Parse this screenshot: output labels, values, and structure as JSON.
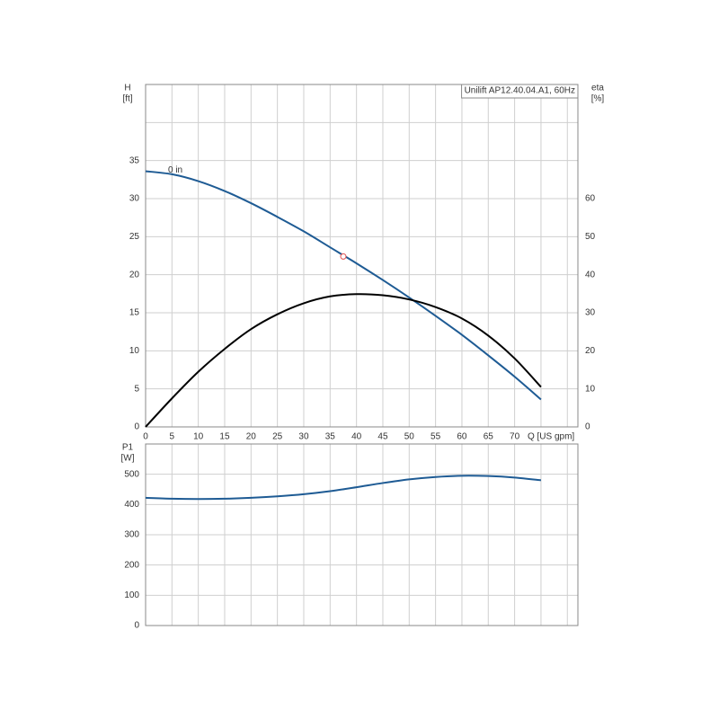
{
  "chart_data": [
    {
      "type": "line",
      "title": "Unilift AP12.40.04.A1, 60Hz",
      "ylabel": "H",
      "yunit": "[ft]",
      "y2label": "eta",
      "y2unit": "[%]",
      "xlabel": "Q [US gpm]",
      "curve_label": "0 in",
      "x": [
        0,
        5,
        10,
        15,
        20,
        25,
        30,
        35,
        40,
        45,
        50,
        55,
        60,
        65,
        70,
        75
      ],
      "series": [
        {
          "axis": "y",
          "color": "#1e5b94",
          "values": [
            33.6,
            33.2,
            32.3,
            31.0,
            29.4,
            27.6,
            25.7,
            23.6,
            21.5,
            19.3,
            17.0,
            14.6,
            12.1,
            9.4,
            6.6,
            3.6
          ]
        },
        {
          "axis": "y2",
          "color": "#000000",
          "values": [
            0,
            7.5,
            14.5,
            20.5,
            25.7,
            29.6,
            32.5,
            34.3,
            34.9,
            34.6,
            33.5,
            31.5,
            28.5,
            24,
            18,
            10.5
          ]
        }
      ],
      "points": [
        {
          "x": 37.5,
          "y": 22.4,
          "color": "#e05050"
        }
      ],
      "xlim": [
        0,
        82
      ],
      "xticks": [
        0,
        5,
        10,
        15,
        20,
        25,
        30,
        35,
        40,
        45,
        50,
        55,
        60,
        65,
        70,
        {
          "value": 75,
          "label": null
        },
        {
          "value": 80,
          "label": null
        }
      ],
      "ylim": [
        0,
        45
      ],
      "yticks": [
        0,
        5,
        10,
        15,
        20,
        25,
        30,
        35,
        {
          "value": 40,
          "label": null
        },
        {
          "value": 45,
          "label": null
        }
      ],
      "y2lim": [
        0,
        90
      ],
      "y2ticks": [
        0,
        10,
        20,
        30,
        40,
        50,
        60
      ],
      "grid": true,
      "show_xtick_labels": true
    },
    {
      "type": "line",
      "ylabel": "P1",
      "yunit": "[W]",
      "x": [
        0,
        5,
        10,
        15,
        20,
        25,
        30,
        35,
        40,
        45,
        50,
        55,
        60,
        65,
        70,
        75
      ],
      "series": [
        {
          "axis": "y",
          "color": "#1e5b94",
          "values": [
            422,
            419,
            418,
            419,
            422,
            427,
            434,
            444,
            457,
            471,
            483,
            491,
            495,
            494,
            489,
            480
          ]
        }
      ],
      "xlim": [
        0,
        82
      ],
      "xticks": [
        0,
        5,
        10,
        15,
        20,
        25,
        30,
        35,
        40,
        45,
        50,
        55,
        60,
        65,
        70,
        75,
        80
      ],
      "ylim": [
        0,
        600
      ],
      "yticks": [
        0,
        100,
        200,
        300,
        400,
        500,
        {
          "value": 600,
          "label": null
        }
      ],
      "grid": true,
      "show_xtick_labels": false
    }
  ]
}
